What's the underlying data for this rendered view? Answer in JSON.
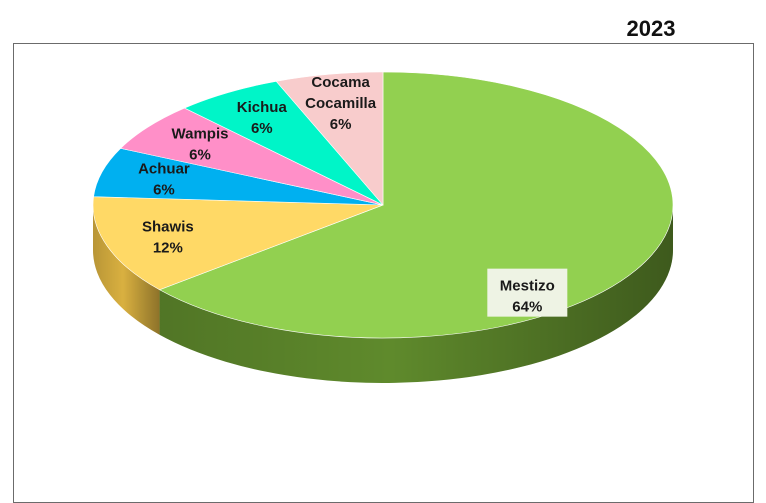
{
  "year": "2023",
  "chart_data": {
    "type": "pie",
    "title": "2023",
    "slices": [
      {
        "label_lines": [
          "Mestizo"
        ],
        "value": 64,
        "value_label": "64%",
        "color": "#92d050",
        "side_color": "#5f8a2c"
      },
      {
        "label_lines": [
          "Shawis"
        ],
        "value": 12,
        "value_label": "12%",
        "color": "#ffd966",
        "side_color": "#d9b040"
      },
      {
        "label_lines": [
          "Achuar"
        ],
        "value": 6,
        "value_label": "6%",
        "color": "#00b0f0",
        "side_color": "#0086b8"
      },
      {
        "label_lines": [
          "Wampis"
        ],
        "value": 6,
        "value_label": "6%",
        "color": "#ff8fc8",
        "side_color": "#d96aa3"
      },
      {
        "label_lines": [
          "Kichua"
        ],
        "value": 6,
        "value_label": "6%",
        "color": "#00f5c8",
        "side_color": "#00c29e"
      },
      {
        "label_lines": [
          "Cocama",
          "Cocamilla"
        ],
        "value": 6,
        "value_label": "6%",
        "color": "#f8cccc",
        "side_color": "#d4a8a8"
      }
    ]
  }
}
